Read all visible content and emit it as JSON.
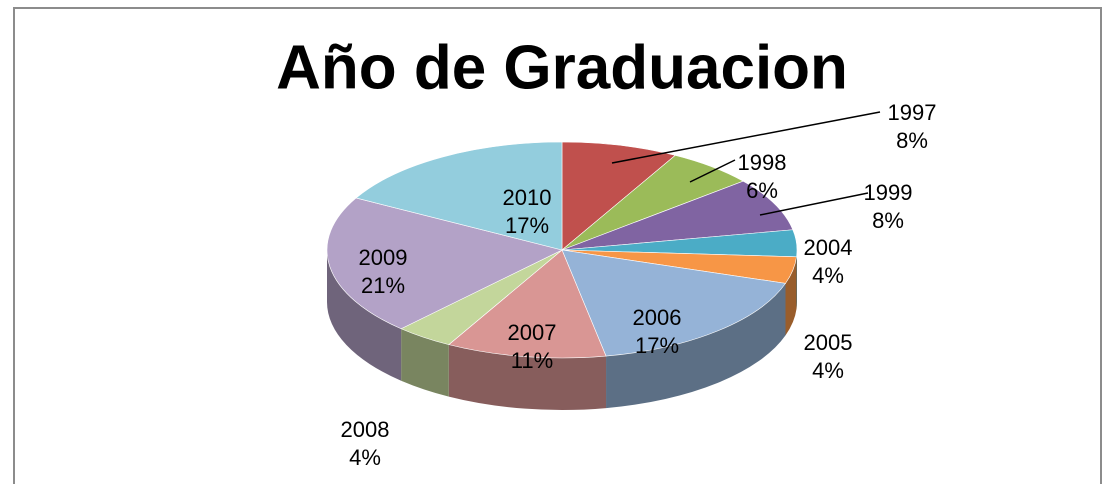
{
  "chart_data": {
    "type": "pie",
    "title": "Año de Graduacion",
    "categories": [
      "1997",
      "1998",
      "1999",
      "2004",
      "2005",
      "2006",
      "2007",
      "2008",
      "2009",
      "2010"
    ],
    "values": [
      8,
      6,
      8,
      4,
      4,
      17,
      11,
      4,
      21,
      17
    ],
    "value_labels": [
      "8%",
      "6%",
      "8%",
      "4%",
      "4%",
      "17%",
      "11%",
      "4%",
      "21%",
      "17%"
    ],
    "colors": [
      "#c0504d",
      "#9bbb59",
      "#8064a2",
      "#4bacc6",
      "#f79646",
      "#95b3d7",
      "#d99694",
      "#c3d69b",
      "#b3a2c7",
      "#93cddd"
    ]
  }
}
